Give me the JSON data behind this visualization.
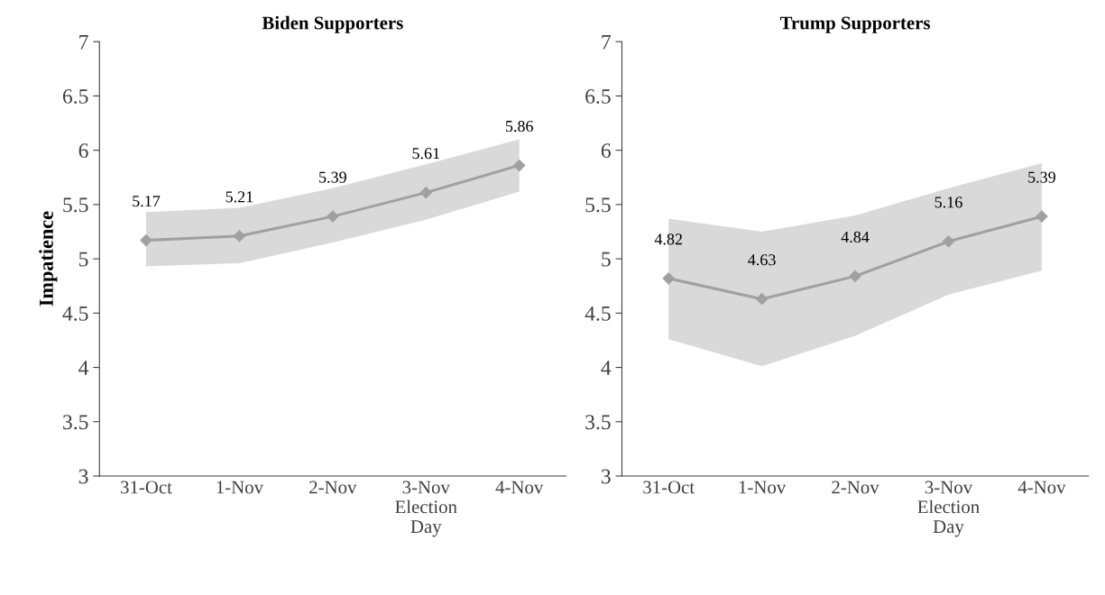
{
  "chart_data": [
    {
      "type": "line",
      "title": "Biden Supporters",
      "ylabel": "Impatience",
      "categories": [
        "31-Oct",
        "1-Nov",
        "2-Nov",
        "3-Nov\nElection\nDay",
        "4-Nov"
      ],
      "series": [
        {
          "color": "#a0a0a0",
          "values": [
            5.17,
            5.21,
            5.39,
            5.61,
            5.86
          ],
          "lower": [
            4.93,
            4.96,
            5.15,
            5.36,
            5.62
          ],
          "upper": [
            5.43,
            5.47,
            5.65,
            5.87,
            6.1
          ]
        }
      ],
      "ylim": [
        3,
        7
      ],
      "yticks": [
        3,
        3.5,
        4,
        4.5,
        5,
        5.5,
        6,
        6.5,
        7
      ],
      "grid": false,
      "marker": "diamond",
      "line_style": "solid",
      "data_labels": true
    },
    {
      "type": "line",
      "title": "Trump Supporters",
      "categories": [
        "31-Oct",
        "1-Nov",
        "2-Nov",
        "3-Nov\nElection\nDay",
        "4-Nov"
      ],
      "series": [
        {
          "color": "#a0a0a0",
          "values": [
            4.82,
            4.63,
            4.84,
            5.16,
            5.39
          ],
          "lower": [
            4.26,
            4.01,
            4.29,
            4.67,
            4.89
          ],
          "upper": [
            5.37,
            5.25,
            5.4,
            5.65,
            5.88
          ]
        }
      ],
      "ylim": [
        3,
        7
      ],
      "yticks": [
        3,
        3.5,
        4,
        4.5,
        5,
        5.5,
        6,
        6.5,
        7
      ],
      "grid": false,
      "marker": "diamond",
      "line_style": "solid",
      "data_labels": true
    }
  ]
}
